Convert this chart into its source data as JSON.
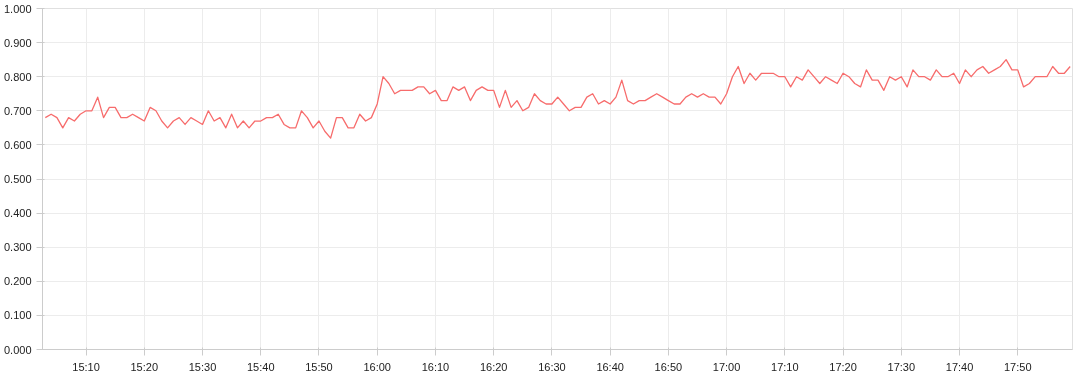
{
  "chart_data": {
    "type": "line",
    "grid": true,
    "marker": "none",
    "line_style": "solid",
    "x": [
      15.05,
      15.0667,
      15.0833,
      15.1,
      15.1167,
      15.1333,
      15.15,
      15.1667,
      15.1833,
      15.2,
      15.2167,
      15.2333,
      15.25,
      15.2667,
      15.2833,
      15.3,
      15.3167,
      15.3333,
      15.35,
      15.3667,
      15.3833,
      15.4,
      15.4167,
      15.4333,
      15.45,
      15.4667,
      15.4833,
      15.5,
      15.5167,
      15.5333,
      15.55,
      15.5667,
      15.5833,
      15.6,
      15.6167,
      15.6333,
      15.65,
      15.6667,
      15.6833,
      15.7,
      15.7167,
      15.7333,
      15.75,
      15.7667,
      15.7833,
      15.8,
      15.8167,
      15.8333,
      15.85,
      15.8667,
      15.8833,
      15.9,
      15.9167,
      15.9333,
      15.95,
      15.9667,
      15.9833,
      16.0,
      16.0167,
      16.0333,
      16.05,
      16.0667,
      16.0833,
      16.1,
      16.1167,
      16.1333,
      16.15,
      16.1667,
      16.1833,
      16.2,
      16.2167,
      16.2333,
      16.25,
      16.2667,
      16.2833,
      16.3,
      16.3167,
      16.3333,
      16.35,
      16.3667,
      16.3833,
      16.4,
      16.4167,
      16.4333,
      16.45,
      16.4667,
      16.4833,
      16.5,
      16.5167,
      16.5333,
      16.55,
      16.5667,
      16.5833,
      16.6,
      16.6167,
      16.6333,
      16.65,
      16.6667,
      16.6833,
      16.7,
      16.7167,
      16.7333,
      16.75,
      16.7667,
      16.7833,
      16.8,
      16.8167,
      16.8333,
      16.85,
      16.8667,
      16.8833,
      16.9,
      16.9167,
      16.9333,
      16.95,
      16.9667,
      16.9833,
      17.0,
      17.0167,
      17.0333,
      17.05,
      17.0667,
      17.0833,
      17.1,
      17.1167,
      17.1333,
      17.15,
      17.1667,
      17.1833,
      17.2,
      17.2167,
      17.2333,
      17.25,
      17.2667,
      17.2833,
      17.3,
      17.3167,
      17.3333,
      17.35,
      17.3667,
      17.3833,
      17.4,
      17.4167,
      17.4333,
      17.45,
      17.4667,
      17.4833,
      17.5,
      17.5167,
      17.5333,
      17.55,
      17.5667,
      17.5833,
      17.6,
      17.6167,
      17.6333,
      17.65,
      17.6667,
      17.6833,
      17.7,
      17.7167,
      17.7333,
      17.75,
      17.7667,
      17.7833,
      17.8,
      17.8167,
      17.8333,
      17.85,
      17.8667,
      17.8833,
      17.9,
      17.9167,
      17.9333,
      17.95,
      17.9667,
      17.9833
    ],
    "series": [
      {
        "color": "#f76c6c",
        "values": [
          0.68,
          0.69,
          0.68,
          0.65,
          0.68,
          0.67,
          0.69,
          0.7,
          0.7,
          0.74,
          0.68,
          0.71,
          0.71,
          0.68,
          0.68,
          0.69,
          0.68,
          0.67,
          0.71,
          0.7,
          0.67,
          0.65,
          0.67,
          0.68,
          0.66,
          0.68,
          0.67,
          0.66,
          0.7,
          0.67,
          0.68,
          0.65,
          0.69,
          0.65,
          0.67,
          0.65,
          0.67,
          0.67,
          0.68,
          0.68,
          0.69,
          0.66,
          0.65,
          0.65,
          0.7,
          0.68,
          0.65,
          0.67,
          0.64,
          0.62,
          0.68,
          0.68,
          0.65,
          0.65,
          0.69,
          0.67,
          0.68,
          0.72,
          0.8,
          0.78,
          0.75,
          0.76,
          0.76,
          0.76,
          0.77,
          0.77,
          0.75,
          0.76,
          0.73,
          0.73,
          0.77,
          0.76,
          0.77,
          0.73,
          0.76,
          0.77,
          0.76,
          0.76,
          0.71,
          0.76,
          0.71,
          0.73,
          0.7,
          0.71,
          0.75,
          0.73,
          0.72,
          0.72,
          0.74,
          0.72,
          0.7,
          0.71,
          0.71,
          0.74,
          0.75,
          0.72,
          0.73,
          0.72,
          0.74,
          0.79,
          0.73,
          0.72,
          0.73,
          0.73,
          0.74,
          0.75,
          0.74,
          0.73,
          0.72,
          0.72,
          0.74,
          0.75,
          0.74,
          0.75,
          0.74,
          0.74,
          0.72,
          0.75,
          0.8,
          0.83,
          0.78,
          0.81,
          0.79,
          0.81,
          0.81,
          0.81,
          0.8,
          0.8,
          0.77,
          0.8,
          0.79,
          0.82,
          0.8,
          0.78,
          0.8,
          0.79,
          0.78,
          0.81,
          0.8,
          0.78,
          0.77,
          0.82,
          0.79,
          0.79,
          0.76,
          0.8,
          0.79,
          0.8,
          0.77,
          0.82,
          0.8,
          0.8,
          0.79,
          0.82,
          0.8,
          0.8,
          0.81,
          0.78,
          0.82,
          0.8,
          0.82,
          0.83,
          0.81,
          0.82,
          0.83,
          0.85,
          0.82,
          0.82,
          0.77,
          0.78,
          0.8,
          0.8,
          0.8,
          0.83,
          0.81,
          0.81,
          0.83
        ]
      }
    ],
    "xlim": [
      15.042,
      17.99
    ],
    "xticks": [
      {
        "value": 15.1667,
        "label": "15:10"
      },
      {
        "value": 15.3333,
        "label": "15:20"
      },
      {
        "value": 15.5,
        "label": "15:30"
      },
      {
        "value": 15.6667,
        "label": "15:40"
      },
      {
        "value": 15.8333,
        "label": "15:50"
      },
      {
        "value": 16.0,
        "label": "16:00"
      },
      {
        "value": 16.1667,
        "label": "16:10"
      },
      {
        "value": 16.3333,
        "label": "16:20"
      },
      {
        "value": 16.5,
        "label": "16:30"
      },
      {
        "value": 16.6667,
        "label": "16:40"
      },
      {
        "value": 16.8333,
        "label": "16:50"
      },
      {
        "value": 17.0,
        "label": "17:00"
      },
      {
        "value": 17.1667,
        "label": "17:10"
      },
      {
        "value": 17.3333,
        "label": "17:20"
      },
      {
        "value": 17.5,
        "label": "17:30"
      },
      {
        "value": 17.6667,
        "label": "17:40"
      },
      {
        "value": 17.8333,
        "label": "17:50"
      }
    ],
    "ylim": [
      0,
      1
    ],
    "yticks": [
      {
        "value": 0,
        "label": "0.000"
      },
      {
        "value": 0.1,
        "label": "0.100"
      },
      {
        "value": 0.2,
        "label": "0.200"
      },
      {
        "value": 0.3,
        "label": "0.300"
      },
      {
        "value": 0.4,
        "label": "0.400"
      },
      {
        "value": 0.5,
        "label": "0.500"
      },
      {
        "value": 0.6,
        "label": "0.600"
      },
      {
        "value": 0.7,
        "label": "0.700"
      },
      {
        "value": 0.8,
        "label": "0.800"
      },
      {
        "value": 0.9,
        "label": "0.900"
      },
      {
        "value": 1.0,
        "label": "1.000"
      }
    ]
  }
}
